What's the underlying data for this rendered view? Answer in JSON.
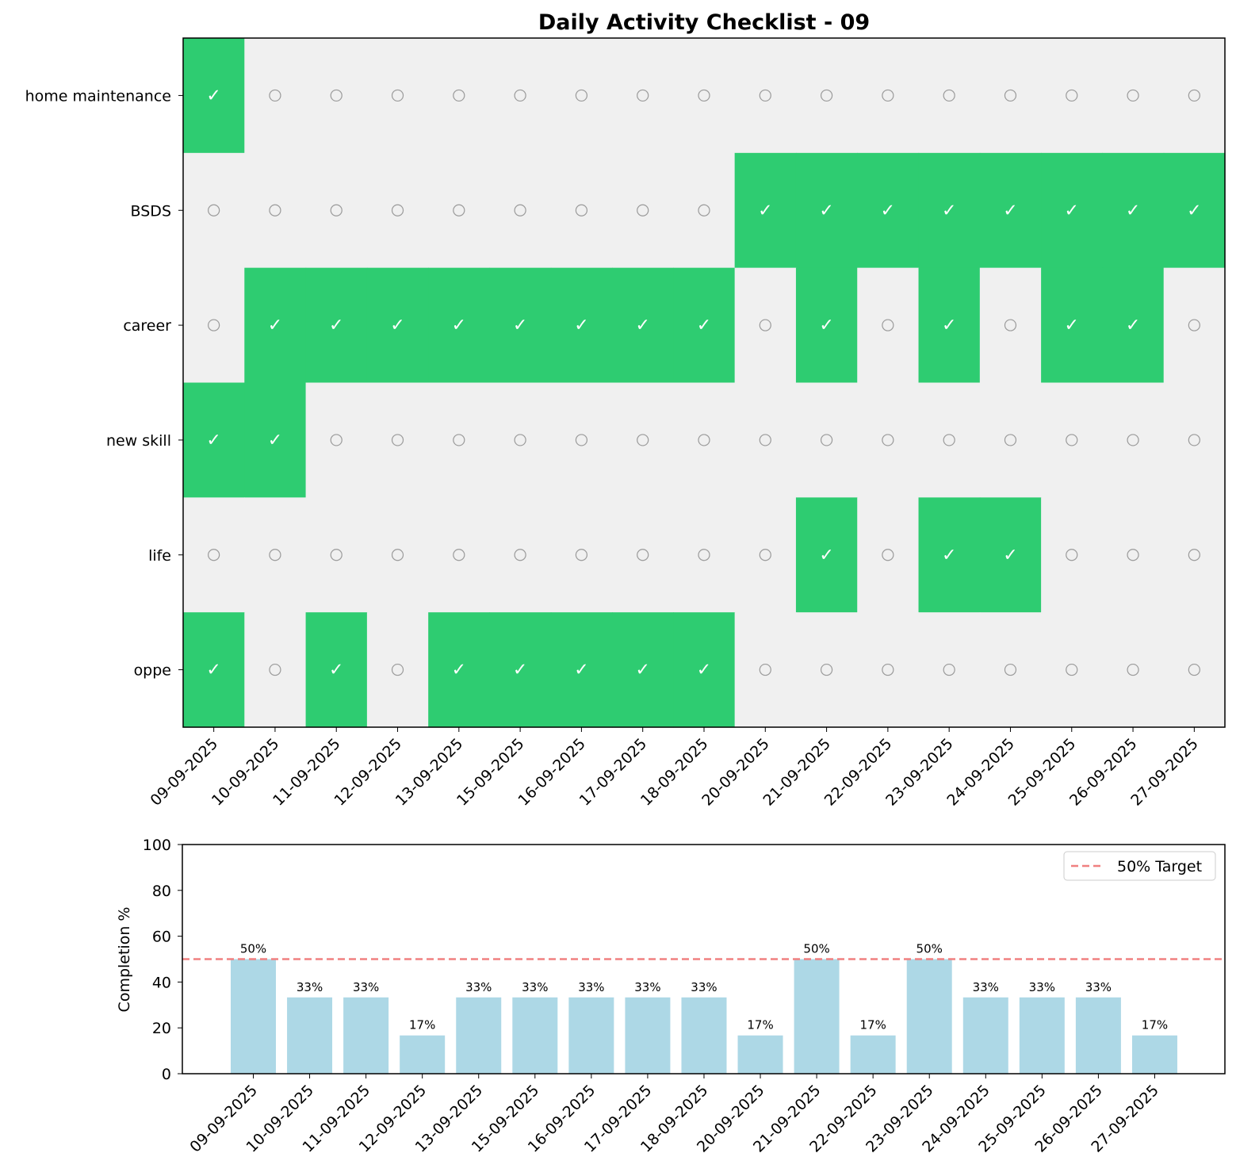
{
  "chart_data": [
    {
      "type": "heatmap",
      "title": "Daily Activity Checklist - 09",
      "rows": [
        "home maintenance",
        "BSDS",
        "career",
        "new skill",
        "life",
        "oppe"
      ],
      "columns": [
        "09-09-2025",
        "10-09-2025",
        "11-09-2025",
        "12-09-2025",
        "13-09-2025",
        "15-09-2025",
        "16-09-2025",
        "17-09-2025",
        "18-09-2025",
        "20-09-2025",
        "21-09-2025",
        "22-09-2025",
        "23-09-2025",
        "24-09-2025",
        "25-09-2025",
        "26-09-2025",
        "27-09-2025"
      ],
      "values": [
        [
          1,
          0,
          0,
          0,
          0,
          0,
          0,
          0,
          0,
          0,
          0,
          0,
          0,
          0,
          0,
          0,
          0
        ],
        [
          0,
          0,
          0,
          0,
          0,
          0,
          0,
          0,
          0,
          1,
          1,
          1,
          1,
          1,
          1,
          1,
          1
        ],
        [
          0,
          1,
          1,
          1,
          1,
          1,
          1,
          1,
          1,
          0,
          1,
          0,
          1,
          0,
          1,
          1,
          0
        ],
        [
          1,
          1,
          0,
          0,
          0,
          0,
          0,
          0,
          0,
          0,
          0,
          0,
          0,
          0,
          0,
          0,
          0
        ],
        [
          0,
          0,
          0,
          0,
          0,
          0,
          0,
          0,
          0,
          0,
          1,
          0,
          1,
          1,
          0,
          0,
          0
        ],
        [
          1,
          0,
          1,
          0,
          1,
          1,
          1,
          1,
          1,
          0,
          0,
          0,
          0,
          0,
          0,
          0,
          0
        ]
      ],
      "done_symbol": "✓",
      "open_symbol": "○",
      "colors": {
        "done": "#2ecc71",
        "open": "#f0f0f0"
      }
    },
    {
      "type": "bar",
      "categories": [
        "09-09-2025",
        "10-09-2025",
        "11-09-2025",
        "12-09-2025",
        "13-09-2025",
        "15-09-2025",
        "16-09-2025",
        "17-09-2025",
        "18-09-2025",
        "20-09-2025",
        "21-09-2025",
        "22-09-2025",
        "23-09-2025",
        "24-09-2025",
        "25-09-2025",
        "26-09-2025",
        "27-09-2025"
      ],
      "values": [
        50,
        33.3,
        33.3,
        16.7,
        33.3,
        33.3,
        33.3,
        33.3,
        33.3,
        16.7,
        50,
        16.7,
        50,
        33.3,
        33.3,
        33.3,
        16.7
      ],
      "data_labels": [
        "50%",
        "33%",
        "33%",
        "17%",
        "33%",
        "33%",
        "33%",
        "33%",
        "33%",
        "17%",
        "50%",
        "17%",
        "50%",
        "33%",
        "33%",
        "33%",
        "17%"
      ],
      "ylabel": "Completion %",
      "ylim": [
        0,
        100
      ],
      "yticks": [
        "0",
        "20",
        "40",
        "60",
        "80",
        "100"
      ],
      "target_line": {
        "value": 50,
        "label": "50% Target",
        "color": "#f08080"
      },
      "legend_position": "upper right",
      "colors": {
        "bar": "#add8e6"
      }
    }
  ]
}
